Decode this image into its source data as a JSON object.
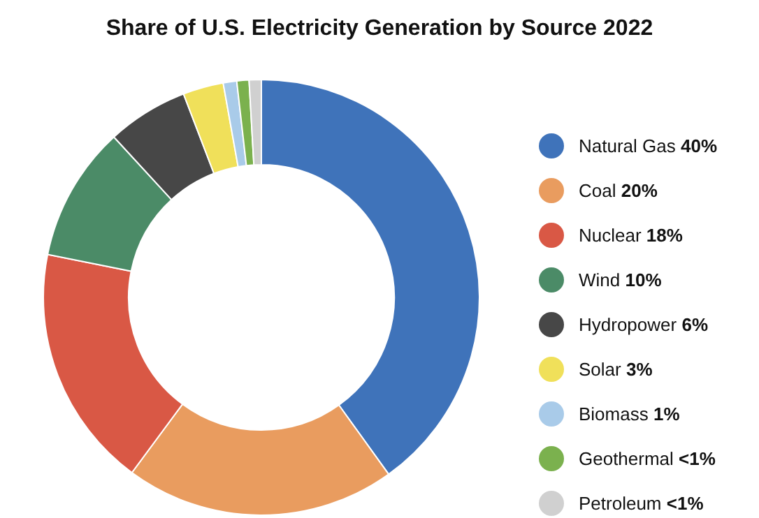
{
  "chart_data": {
    "type": "donut",
    "title": "Share of U.S. Electricity Generation by Source 2022",
    "categories": [
      "Natural Gas",
      "Coal",
      "Nuclear",
      "Wind",
      "Hydropower",
      "Solar",
      "Biomass",
      "Geothermal",
      "Petroleum"
    ],
    "values": [
      40,
      20,
      18,
      10,
      6,
      3,
      1,
      0.9,
      0.9
    ],
    "value_labels": [
      "40%",
      "20%",
      "18%",
      "10%",
      "6%",
      "3%",
      "1%",
      "<1%",
      "<1%"
    ],
    "colors": [
      "#3f73ba",
      "#e99c5f",
      "#d95845",
      "#4b8b67",
      "#474747",
      "#f0e05a",
      "#a9cbe9",
      "#7bb14e",
      "#d0d0d0"
    ],
    "legend": "right"
  }
}
